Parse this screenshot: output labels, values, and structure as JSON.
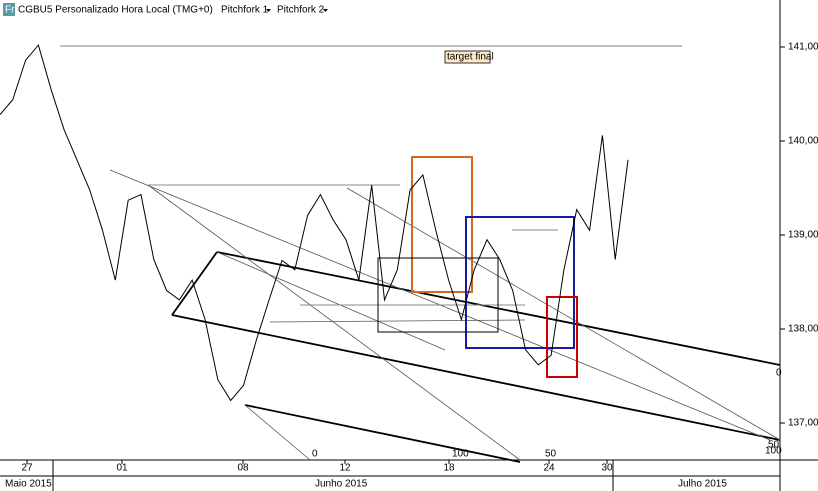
{
  "chart_data": {
    "type": "line",
    "icon": "Fr",
    "title": "CGBU5 Personalizado Hora Local (TMG+0)",
    "menus": [
      "Pitchfork 1",
      "Pitchfork 2"
    ],
    "annotation": "target final",
    "series": [
      {
        "color": "#000000",
        "values": [
          140.28,
          140.44,
          140.86,
          141.02,
          140.54,
          140.12,
          139.8,
          139.48,
          139.05,
          138.52,
          139.37,
          139.43,
          138.74,
          138.41,
          138.31,
          138.52,
          138.1,
          137.46,
          137.24,
          137.4,
          137.88,
          138.31,
          138.73,
          138.63,
          139.21,
          139.43,
          139.16,
          138.95,
          138.52,
          139.53,
          138.31,
          138.63,
          139.48,
          139.64,
          139.05,
          138.52,
          138.1,
          138.63,
          138.95,
          138.74,
          138.41,
          137.78,
          137.62,
          137.72,
          138.63,
          139.27,
          139.05,
          140.06,
          138.74,
          139.8
        ]
      }
    ],
    "ylim": [
      136.66,
      141.5
    ],
    "yticks": [
      {
        "value": 137,
        "label": "137,00"
      },
      {
        "value": 138,
        "label": "138,00"
      },
      {
        "value": 139,
        "label": "139,00"
      },
      {
        "value": 140,
        "label": "140,00"
      },
      {
        "value": 141,
        "label": "141,00"
      }
    ],
    "date_labels": [
      "27",
      "01",
      "08",
      "12",
      "18",
      "24",
      "30"
    ],
    "month_labels": [
      "Maio 2015",
      "Junho 2015",
      "Julho 2015"
    ],
    "pitchfork_labels": [
      "0",
      "100",
      "50",
      "0",
      "50",
      "100"
    ]
  }
}
